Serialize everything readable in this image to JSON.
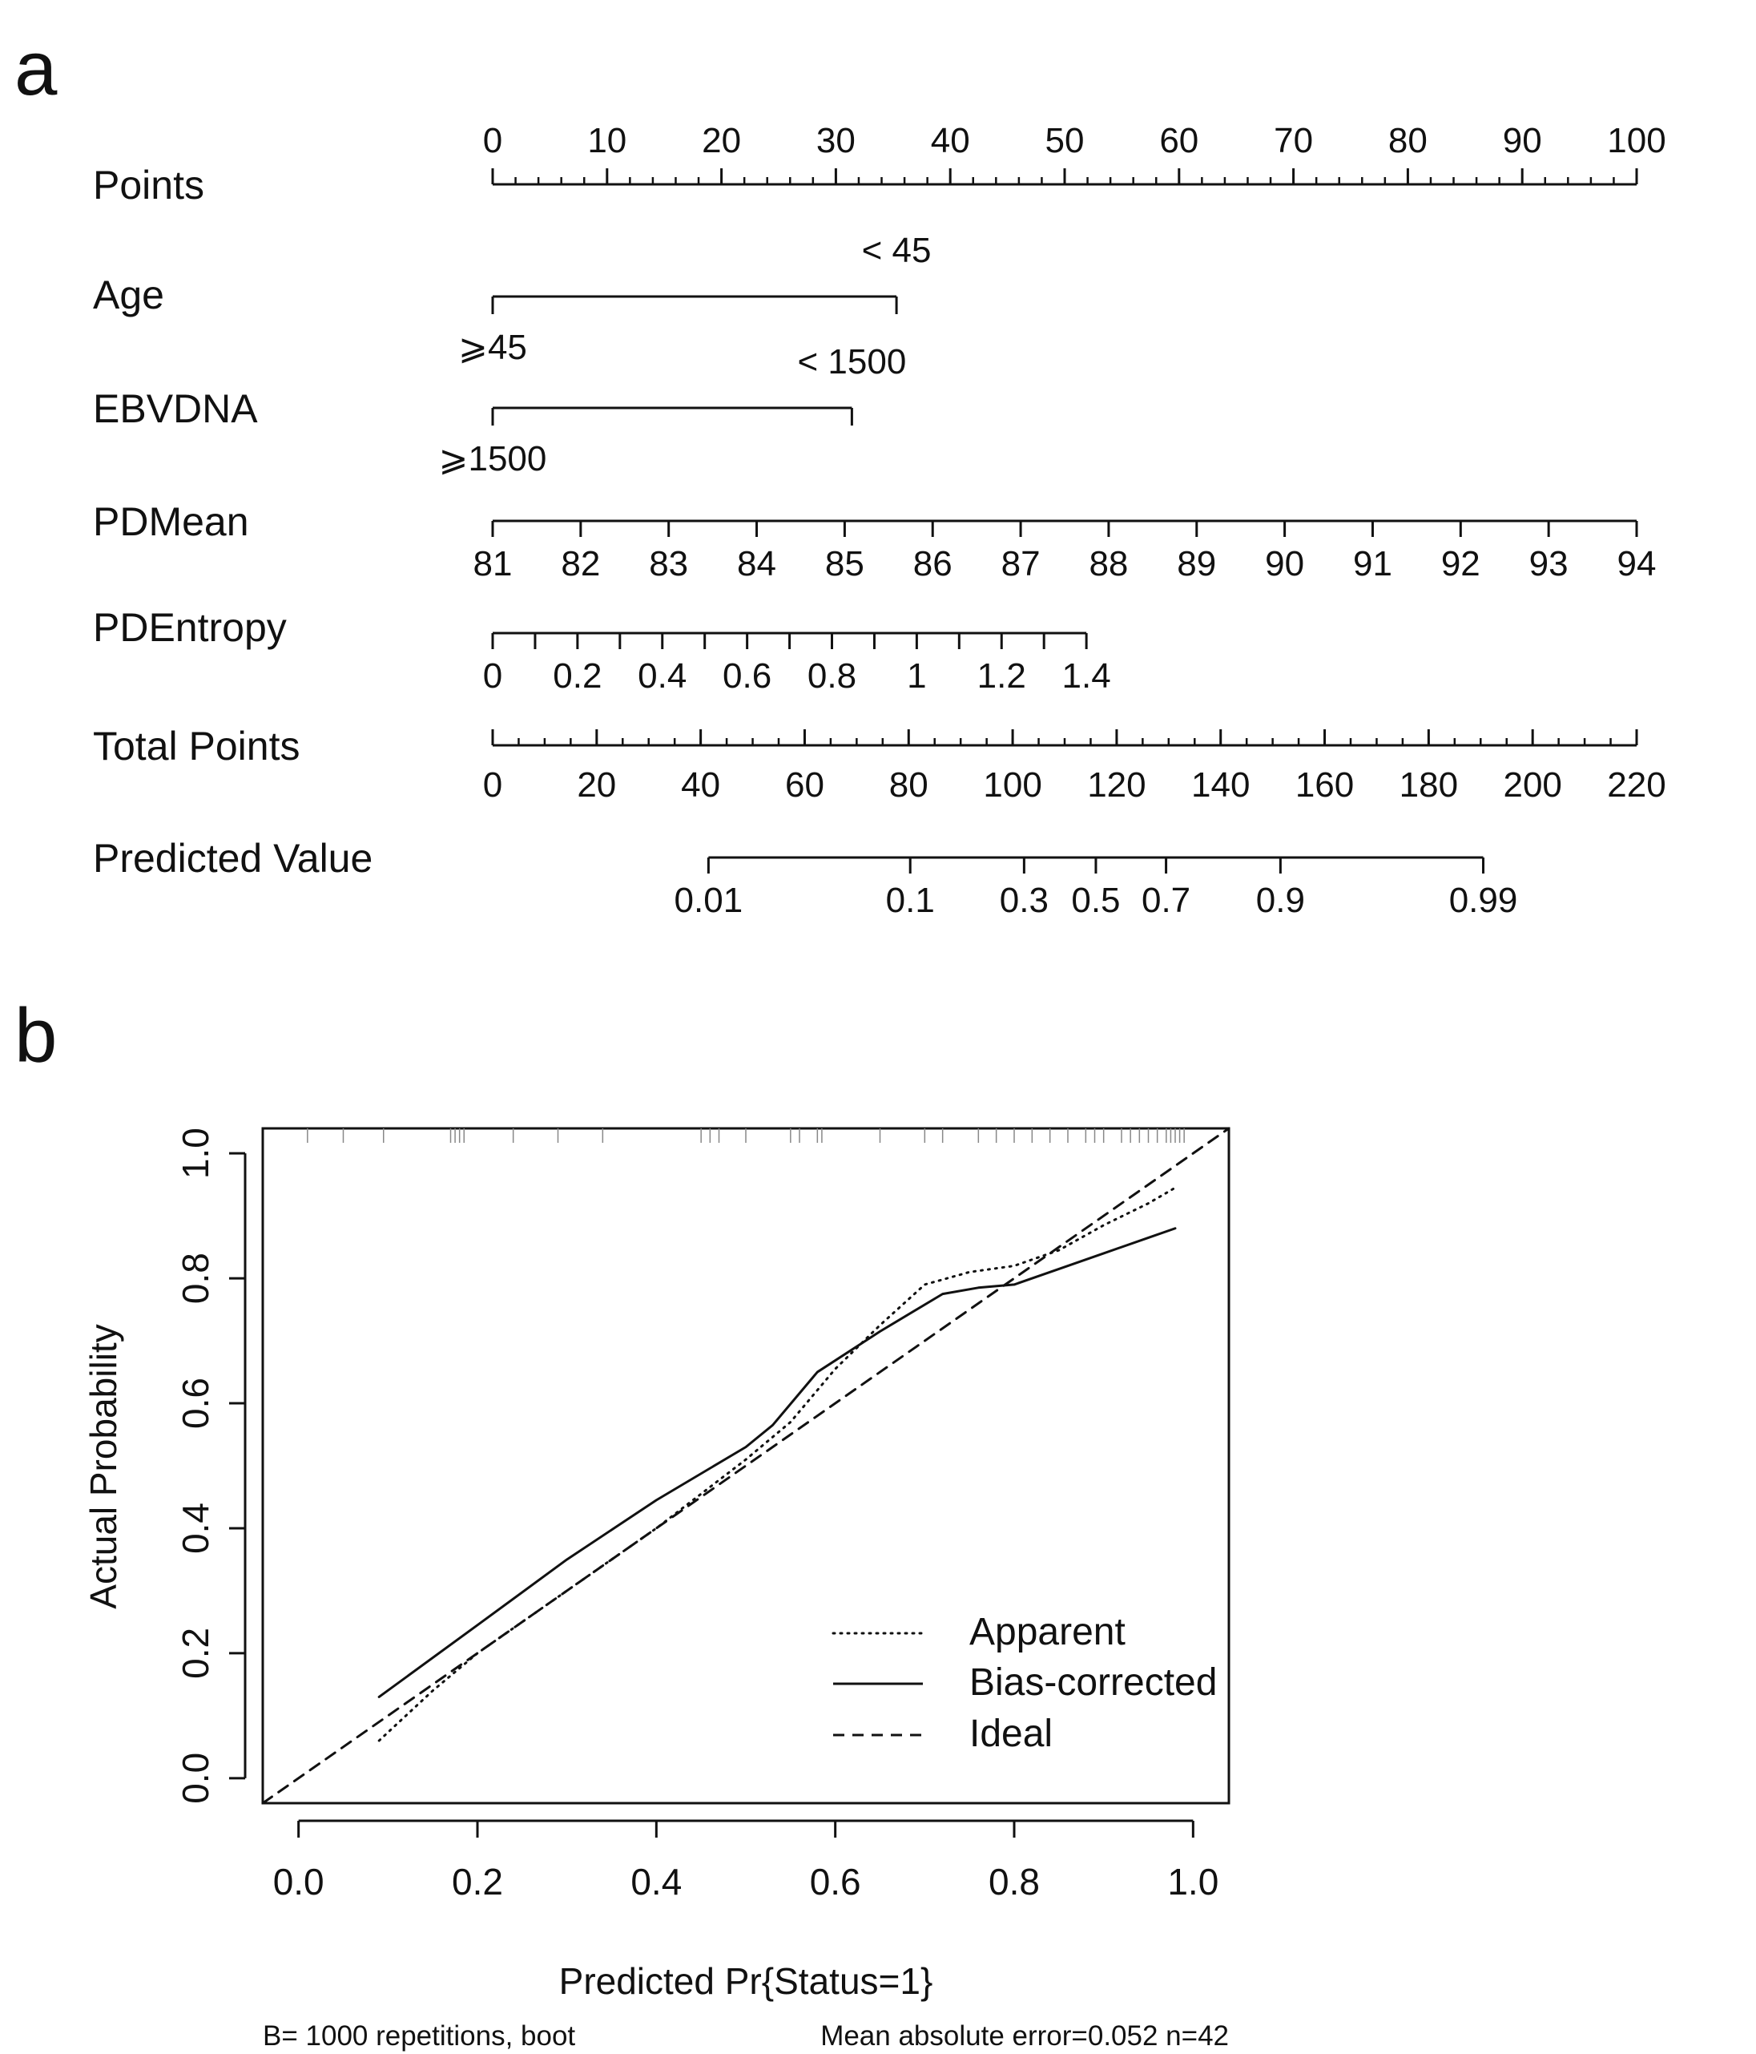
{
  "figure": {
    "panel_a_label": "a",
    "panel_b_label": "b"
  },
  "chart_data": [
    {
      "type": "nomogram",
      "rows": [
        {
          "key": "points",
          "label": "Points",
          "axis_min": 0,
          "axis_max": 100,
          "ticks": [
            0,
            10,
            20,
            30,
            40,
            50,
            60,
            70,
            80,
            90,
            100
          ],
          "tick_labels": [
            "0",
            "10",
            "20",
            "30",
            "40",
            "50",
            "60",
            "70",
            "80",
            "90",
            "100"
          ],
          "minor_step": 2,
          "label_side": "above"
        },
        {
          "key": "age",
          "label": "Age",
          "categories": [
            {
              "label": "⩾45",
              "points": 0,
              "side": "below"
            },
            {
              "label": "< 45",
              "points": 35.3,
              "side": "above"
            }
          ]
        },
        {
          "key": "ebvdna",
          "label": "EBVDNA",
          "categories": [
            {
              "label": "⩾1500",
              "points": 0,
              "side": "below"
            },
            {
              "label": "< 1500",
              "points": 31.4,
              "side": "above"
            }
          ]
        },
        {
          "key": "pdmean",
          "label": "PDMean",
          "ticks": [
            81,
            82,
            83,
            84,
            85,
            86,
            87,
            88,
            89,
            90,
            91,
            92,
            93,
            94
          ],
          "tick_labels": [
            "81",
            "82",
            "83",
            "84",
            "85",
            "86",
            "87",
            "88",
            "89",
            "90",
            "91",
            "92",
            "93",
            "94"
          ],
          "points_at_min": 0,
          "points_at_max": 100,
          "label_side": "below"
        },
        {
          "key": "pdentropy",
          "label": "PDEntropy",
          "ticks": [
            0,
            0.1,
            0.2,
            0.3,
            0.4,
            0.5,
            0.6,
            0.7,
            0.8,
            0.9,
            1.0,
            1.1,
            1.2,
            1.3,
            1.4
          ],
          "tick_labels": [
            "0",
            "",
            "0.2",
            "",
            "0.4",
            "",
            "0.6",
            "",
            "0.8",
            "",
            "1",
            "",
            "1.2",
            "",
            "1.4"
          ],
          "points_at_min": 0,
          "points_at_max": 51.9,
          "label_side": "below"
        },
        {
          "key": "total",
          "label": "Total Points",
          "axis_min": 0,
          "axis_max": 220,
          "ticks": [
            0,
            20,
            40,
            60,
            80,
            100,
            120,
            140,
            160,
            180,
            200,
            220
          ],
          "tick_labels": [
            "0",
            "20",
            "40",
            "60",
            "80",
            "100",
            "120",
            "140",
            "160",
            "180",
            "200",
            "220"
          ],
          "minor_step": 5,
          "label_side": "below"
        },
        {
          "key": "predicted",
          "label": "Predicted Value",
          "ticks_total_points": [
            41.5,
            80.3,
            102.2,
            116.0,
            129.5,
            151.5,
            190.5
          ],
          "tick_labels": [
            "0.01",
            "0.1",
            "0.3",
            "0.5",
            "0.7",
            "0.9",
            "0.99"
          ],
          "label_side": "below"
        }
      ]
    },
    {
      "type": "line",
      "title": "",
      "xlabel": "Predicted Pr{Status=1}",
      "ylabel": "Actual Probability",
      "xlim": [
        -0.04,
        1.04
      ],
      "ylim": [
        -0.04,
        1.04
      ],
      "xticks": [
        0.0,
        0.2,
        0.4,
        0.6,
        0.8,
        1.0
      ],
      "xtick_labels": [
        "0.0",
        "0.2",
        "0.4",
        "0.6",
        "0.8",
        "1.0"
      ],
      "yticks": [
        0.0,
        0.2,
        0.4,
        0.6,
        0.8,
        1.0
      ],
      "ytick_labels": [
        "0.0",
        "0.2",
        "0.4",
        "0.6",
        "0.8",
        "1.0"
      ],
      "series": [
        {
          "name": "Apparent",
          "style": "dotted",
          "x": [
            0.09,
            0.15,
            0.2,
            0.3,
            0.4,
            0.5,
            0.55,
            0.6,
            0.65,
            0.7,
            0.75,
            0.8,
            0.85,
            0.9,
            0.95,
            0.98
          ],
          "y": [
            0.06,
            0.14,
            0.2,
            0.3,
            0.4,
            0.51,
            0.57,
            0.655,
            0.725,
            0.79,
            0.81,
            0.82,
            0.845,
            0.885,
            0.92,
            0.945
          ]
        },
        {
          "name": "Bias-corrected",
          "style": "solid",
          "x": [
            0.09,
            0.2,
            0.3,
            0.4,
            0.5,
            0.53,
            0.58,
            0.65,
            0.72,
            0.76,
            0.8,
            0.85,
            0.9,
            0.95,
            0.98
          ],
          "y": [
            0.13,
            0.245,
            0.35,
            0.445,
            0.53,
            0.565,
            0.65,
            0.715,
            0.775,
            0.785,
            0.79,
            0.815,
            0.84,
            0.865,
            0.88
          ]
        },
        {
          "name": "Ideal",
          "style": "dashed",
          "x": [
            -0.04,
            1.04
          ],
          "y": [
            -0.04,
            1.04
          ]
        }
      ],
      "rug_x": [
        0.01,
        0.05,
        0.095,
        0.17,
        0.175,
        0.18,
        0.185,
        0.24,
        0.29,
        0.34,
        0.45,
        0.46,
        0.47,
        0.5,
        0.55,
        0.56,
        0.58,
        0.585,
        0.65,
        0.7,
        0.72,
        0.76,
        0.78,
        0.8,
        0.82,
        0.84,
        0.86,
        0.88,
        0.89,
        0.9,
        0.92,
        0.93,
        0.94,
        0.95,
        0.96,
        0.97,
        0.975,
        0.98,
        0.985,
        0.99
      ],
      "legend": {
        "position": "bottom-right",
        "entries": [
          "Apparent",
          "Bias-corrected",
          "Ideal"
        ]
      },
      "footer_left": "B= 1000 repetitions, boot",
      "footer_right": "Mean absolute error=0.052 n=42"
    }
  ]
}
